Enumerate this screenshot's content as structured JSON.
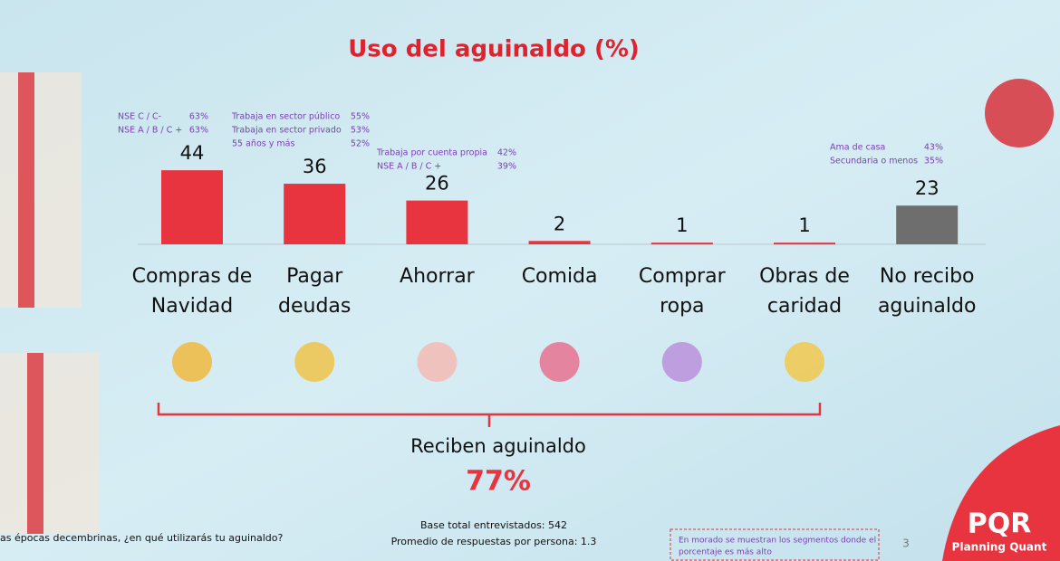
{
  "chart_data": {
    "type": "bar",
    "title": "Uso del aguinaldo (%)",
    "categories": [
      [
        "Compras de",
        "Navidad"
      ],
      [
        "Pagar",
        "deudas"
      ],
      [
        "Ahorrar"
      ],
      [
        "Comida"
      ],
      [
        "Comprar",
        "ropa"
      ],
      [
        "Obras de",
        "caridad"
      ],
      [
        "No recibo",
        "aguinaldo"
      ]
    ],
    "values": [
      44,
      36,
      26,
      2,
      1,
      1,
      23
    ],
    "colors": [
      "#e8343f",
      "#e8343f",
      "#e8343f",
      "#e8343f",
      "#e8343f",
      "#e8343f",
      "#6e6e6e"
    ],
    "ylim": [
      0,
      100
    ],
    "segments": [
      [
        [
          "NSE C / C-",
          "63%"
        ],
        [
          "NSE A / B / C +",
          "63%"
        ]
      ],
      [
        [
          "Trabaja en sector público",
          "55%"
        ],
        [
          "Trabaja en sector privado",
          "53%"
        ],
        [
          "55 años y más",
          "52%"
        ]
      ],
      [
        [
          "Trabaja por cuenta propia",
          "42%"
        ],
        [
          "NSE A / B / C +",
          "39%"
        ]
      ],
      [],
      [],
      [],
      [
        [
          "Ama de casa",
          "43%"
        ],
        [
          "Secundaria o menos",
          "35%"
        ]
      ]
    ],
    "bracket_label": "Reciben aguinaldo",
    "bracket_value": "77%",
    "question": "as épocas decembrinas, ¿en qué utilizarás tu aguinaldo?",
    "base": [
      "Base total entrevistados: 542",
      "Promedio de respuestas por persona: 1.3"
    ],
    "note": [
      "En morado se muestran los segmentos donde el",
      "porcentaje es más alto"
    ],
    "page_number": "3",
    "logo": [
      "PQR",
      "Planning Quant"
    ]
  }
}
